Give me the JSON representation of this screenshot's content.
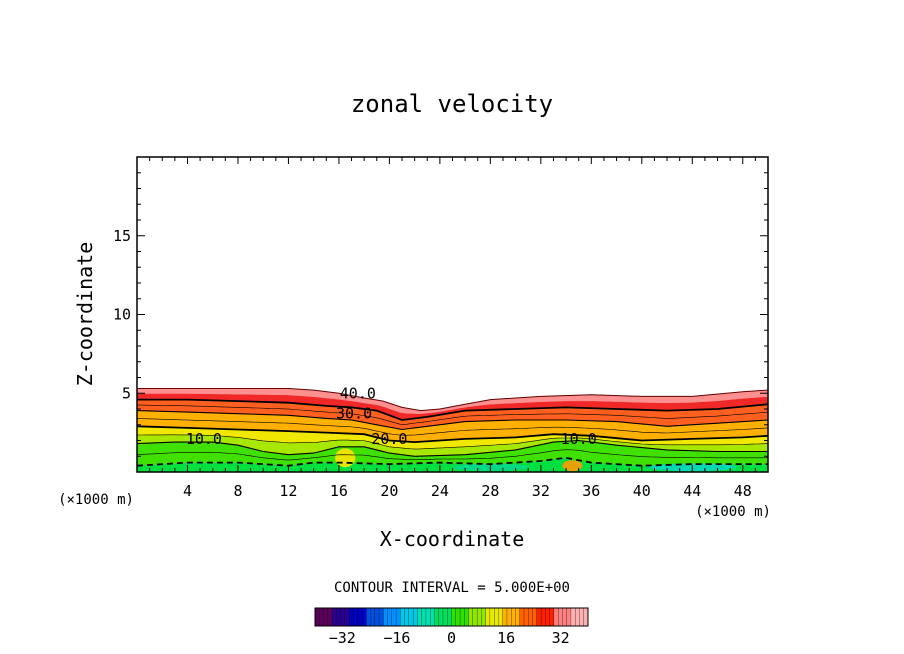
{
  "chart_data": {
    "type": "heatmap",
    "title": "zonal velocity",
    "xlabel": "X-coordinate",
    "ylabel": "Z-coordinate",
    "x_unit": "(×1000 m)",
    "z_unit": "(×1000 m)",
    "xlim": [
      0,
      50
    ],
    "ylim": [
      0,
      20
    ],
    "x_ticks": [
      4,
      8,
      12,
      16,
      20,
      24,
      28,
      32,
      36,
      40,
      44,
      48
    ],
    "y_ticks": [
      5,
      10,
      15
    ],
    "contour_interval_text": "CONTOUR INTERVAL = 5.000E+00",
    "contour_labels": [
      {
        "text": "40.0",
        "x": 17.5,
        "z": 5.0
      },
      {
        "text": "30.0",
        "x": 17.2,
        "z": 3.7
      },
      {
        "text": "20.0",
        "x": 20.0,
        "z": 2.1
      },
      {
        "text": "10.0",
        "x": 5.3,
        "z": 2.1
      },
      {
        "text": "10.0",
        "x": 35.0,
        "z": 2.1
      }
    ],
    "top_boundary": [
      [
        0,
        5.3
      ],
      [
        4,
        5.3
      ],
      [
        8,
        5.3
      ],
      [
        12,
        5.3
      ],
      [
        14,
        5.2
      ],
      [
        16,
        5.0
      ],
      [
        18,
        4.7
      ],
      [
        19.5,
        4.5
      ],
      [
        21,
        4.1
      ],
      [
        22.5,
        3.9
      ],
      [
        24,
        4.0
      ],
      [
        26,
        4.3
      ],
      [
        28,
        4.6
      ],
      [
        32,
        4.8
      ],
      [
        36,
        4.9
      ],
      [
        40,
        4.8
      ],
      [
        44,
        4.8
      ],
      [
        48,
        5.1
      ],
      [
        50,
        5.2
      ]
    ],
    "contour_lines": [
      {
        "level": 40,
        "points": [
          [
            0,
            4.6
          ],
          [
            4,
            4.6
          ],
          [
            8,
            4.5
          ],
          [
            12,
            4.4
          ],
          [
            15,
            4.2
          ],
          [
            17,
            4.1
          ],
          [
            19,
            3.9
          ],
          [
            21,
            3.3
          ],
          [
            23,
            3.5
          ],
          [
            26,
            3.9
          ],
          [
            30,
            4.0
          ],
          [
            34,
            4.1
          ],
          [
            38,
            4.0
          ],
          [
            42,
            3.9
          ],
          [
            46,
            4.0
          ],
          [
            50,
            4.3
          ]
        ]
      },
      {
        "level": 30,
        "points": [
          [
            0,
            3.9
          ],
          [
            4,
            3.8
          ],
          [
            8,
            3.7
          ],
          [
            12,
            3.6
          ],
          [
            15,
            3.4
          ],
          [
            17,
            3.3
          ],
          [
            19,
            3.0
          ],
          [
            21,
            2.7
          ],
          [
            23,
            2.9
          ],
          [
            26,
            3.2
          ],
          [
            30,
            3.3
          ],
          [
            34,
            3.3
          ],
          [
            38,
            3.2
          ],
          [
            42,
            2.9
          ],
          [
            46,
            3.1
          ],
          [
            50,
            3.3
          ]
        ]
      },
      {
        "level": 20,
        "points": [
          [
            0,
            2.9
          ],
          [
            4,
            2.8
          ],
          [
            8,
            2.7
          ],
          [
            12,
            2.6
          ],
          [
            15,
            2.5
          ],
          [
            18,
            2.4
          ],
          [
            20,
            2.0
          ],
          [
            22,
            1.9
          ],
          [
            26,
            2.1
          ],
          [
            30,
            2.2
          ],
          [
            33,
            2.4
          ],
          [
            36,
            2.3
          ],
          [
            40,
            2.0
          ],
          [
            44,
            2.1
          ],
          [
            48,
            2.2
          ],
          [
            50,
            2.3
          ]
        ]
      },
      {
        "level": 10,
        "points": [
          [
            0,
            1.8
          ],
          [
            3,
            1.9
          ],
          [
            6,
            1.9
          ],
          [
            8,
            1.7
          ],
          [
            10,
            1.3
          ],
          [
            12,
            1.1
          ],
          [
            14,
            1.2
          ],
          [
            16,
            1.6
          ],
          [
            18,
            1.6
          ],
          [
            20,
            1.2
          ],
          [
            22,
            1.0
          ],
          [
            26,
            1.1
          ],
          [
            30,
            1.4
          ],
          [
            33,
            1.9
          ],
          [
            35,
            2.0
          ],
          [
            38,
            1.7
          ],
          [
            42,
            1.4
          ],
          [
            46,
            1.3
          ],
          [
            50,
            1.3
          ]
        ]
      },
      {
        "level": 0,
        "points": [
          [
            0,
            0.4
          ],
          [
            4,
            0.6
          ],
          [
            8,
            0.6
          ],
          [
            12,
            0.4
          ],
          [
            14,
            0.6
          ],
          [
            16,
            0.6
          ],
          [
            20,
            0.5
          ],
          [
            24,
            0.6
          ],
          [
            28,
            0.5
          ],
          [
            30,
            0.6
          ],
          [
            32,
            0.7
          ],
          [
            34,
            0.9
          ],
          [
            36,
            0.6
          ],
          [
            40,
            0.4
          ],
          [
            44,
            0.5
          ],
          [
            48,
            0.5
          ],
          [
            50,
            0.5
          ]
        ]
      }
    ],
    "color_bands": [
      {
        "level": 0,
        "color": "#00e040"
      },
      {
        "level": 10,
        "color": "#40e000"
      },
      {
        "level": 16,
        "color": "#a8e800"
      },
      {
        "level": 22,
        "color": "#f0e800"
      },
      {
        "level": 28,
        "color": "#ffb000"
      },
      {
        "level": 34,
        "color": "#ff6020"
      },
      {
        "level": 40,
        "color": "#f02828"
      },
      {
        "level": 46,
        "color": "#ff9090"
      }
    ],
    "colorbar": {
      "min": -40,
      "max": 40,
      "tick_labels": [
        "-32",
        "-16",
        "0",
        "16",
        "32"
      ],
      "tick_values": [
        -32,
        -16,
        0,
        16,
        32
      ],
      "colors": [
        "#5a005a",
        "#2a0090",
        "#0000c0",
        "#0050e0",
        "#0090ff",
        "#00c8e8",
        "#00e0b0",
        "#00e060",
        "#30e000",
        "#90e800",
        "#e8e800",
        "#ffb000",
        "#ff6000",
        "#ff2000",
        "#ff8080",
        "#ffb0b0"
      ]
    }
  }
}
